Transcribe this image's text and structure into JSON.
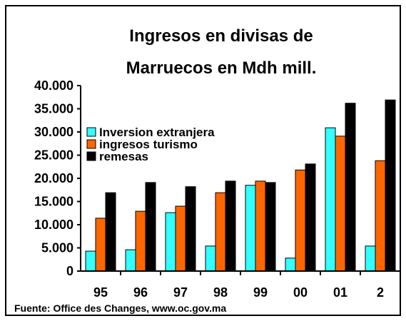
{
  "chart_data": {
    "type": "bar",
    "title": [
      "Ingresos en divisas de",
      "Marruecos en Mdh mill."
    ],
    "source": "Fuente: Office des Changes, www.oc.gov.ma",
    "categories": [
      "95",
      "96",
      "97",
      "98",
      "99",
      "00",
      "01",
      "2"
    ],
    "series": [
      {
        "name": "Inversion extranjera",
        "color": "#33ffff",
        "values": [
          4300,
          4600,
          12600,
          5400,
          18500,
          2800,
          30900,
          5400
        ]
      },
      {
        "name": "ingresos turismo",
        "color": "#ff6600",
        "values": [
          11400,
          12900,
          14000,
          16900,
          19400,
          21800,
          29100,
          23800
        ]
      },
      {
        "name": "remesas",
        "color": "#000000",
        "values": [
          16900,
          19100,
          18200,
          19400,
          19100,
          23100,
          36200,
          36900
        ]
      }
    ],
    "ylim": [
      0,
      40000
    ],
    "yticks": [
      0,
      {
        "value": 5000,
        "label": "5.000"
      },
      {
        "value": 10000,
        "label": "10.000"
      },
      {
        "value": 15000,
        "label": "15.000"
      },
      {
        "value": 20000,
        "label": "20.000"
      },
      {
        "value": 25000,
        "label": "25.000"
      },
      {
        "value": 30000,
        "label": "30.000"
      },
      {
        "value": 35000,
        "label": "35.000"
      },
      {
        "value": 40000,
        "label": "40.000"
      }
    ],
    "legend": "upper left"
  }
}
